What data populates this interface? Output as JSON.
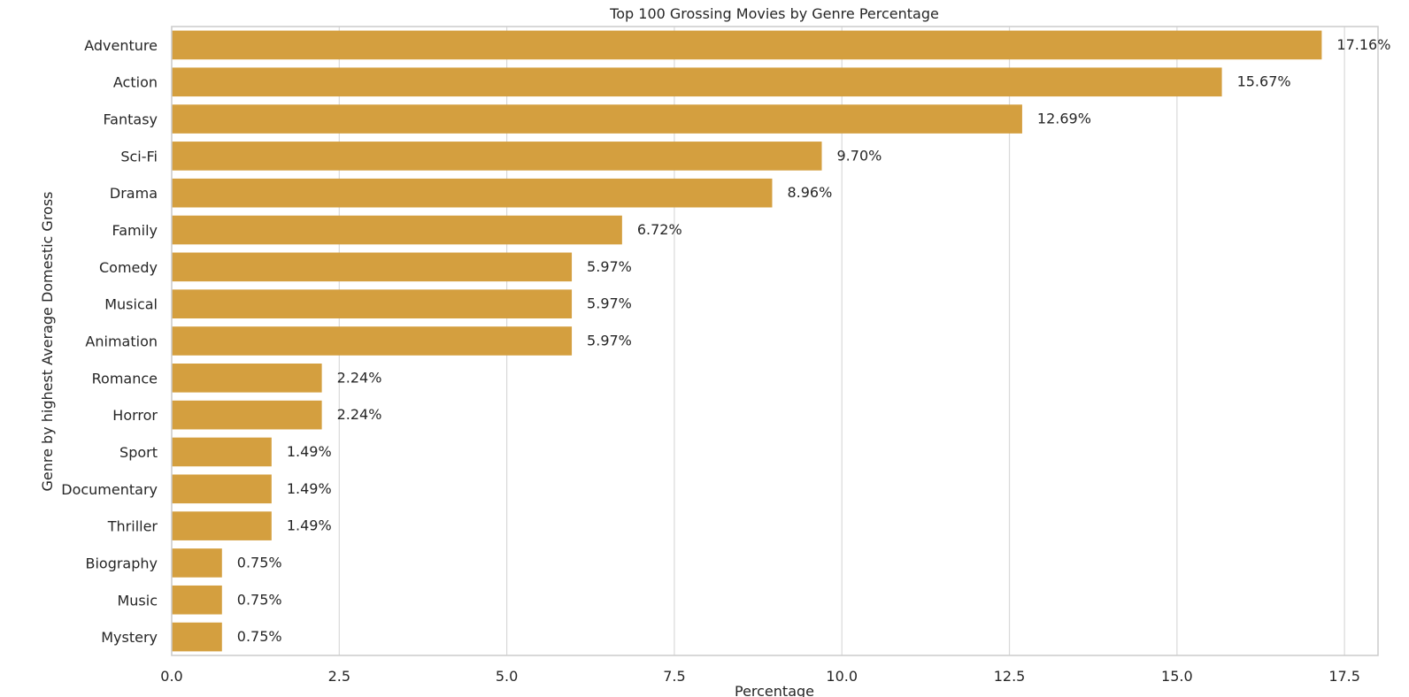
{
  "chart_data": {
    "type": "bar",
    "orientation": "horizontal",
    "title": "Top 100 Grossing Movies by Genre Percentage",
    "xlabel": "Percentage",
    "ylabel": "Genre by highest Average Domestic Gross",
    "categories": [
      "Adventure",
      "Action",
      "Fantasy",
      "Sci-Fi",
      "Drama",
      "Family",
      "Comedy",
      "Musical",
      "Animation",
      "Romance",
      "Horror",
      "Sport",
      "Documentary",
      "Thriller",
      "Biography",
      "Music",
      "Mystery"
    ],
    "values": [
      17.16,
      15.67,
      12.69,
      9.7,
      8.96,
      6.72,
      5.97,
      5.97,
      5.97,
      2.24,
      2.24,
      1.49,
      1.49,
      1.49,
      0.75,
      0.75,
      0.75
    ],
    "value_labels": [
      "17.16%",
      "15.67%",
      "12.69%",
      "9.70%",
      "8.96%",
      "6.72%",
      "5.97%",
      "5.97%",
      "5.97%",
      "2.24%",
      "2.24%",
      "1.49%",
      "1.49%",
      "1.49%",
      "0.75%",
      "0.75%",
      "0.75%"
    ],
    "xticks": [
      0.0,
      2.5,
      5.0,
      7.5,
      10.0,
      12.5,
      15.0,
      17.5
    ],
    "xtick_labels": [
      "0.0",
      "2.5",
      "5.0",
      "7.5",
      "10.0",
      "12.5",
      "15.0",
      "17.5"
    ],
    "xlim": [
      0,
      18.0
    ],
    "grid": "vertical",
    "bar_color": "#d49f3f",
    "grid_color": "#d9d9d9",
    "spine_color": "#cccccc"
  }
}
